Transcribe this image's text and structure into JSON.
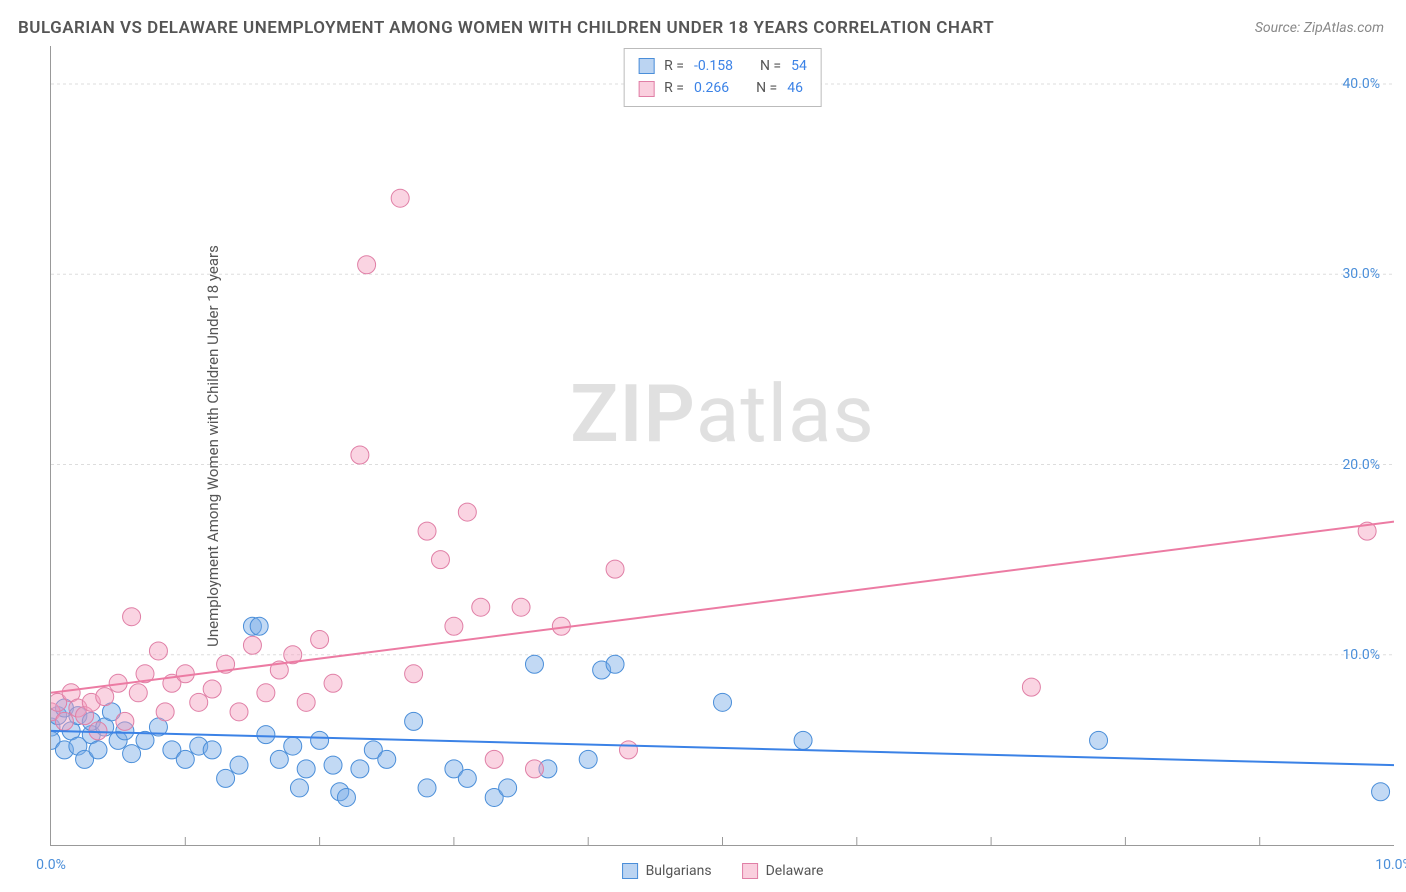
{
  "title": "BULGARIAN VS DELAWARE UNEMPLOYMENT AMONG WOMEN WITH CHILDREN UNDER 18 YEARS CORRELATION CHART",
  "source": "Source: ZipAtlas.com",
  "y_axis_label": "Unemployment Among Women with Children Under 18 years",
  "watermark_bold": "ZIP",
  "watermark_light": "atlas",
  "chart": {
    "type": "scatter",
    "xlim": [
      0,
      10
    ],
    "ylim": [
      0,
      42
    ],
    "x_ticks": [
      0,
      10
    ],
    "x_tick_labels": [
      "0.0%",
      "10.0%"
    ],
    "x_minor_ticks": [
      1,
      2,
      3,
      4,
      5,
      6,
      7,
      8,
      9
    ],
    "y_ticks": [
      10,
      20,
      30,
      40
    ],
    "y_tick_labels": [
      "10.0%",
      "20.0%",
      "30.0%",
      "40.0%"
    ],
    "background_color": "#ffffff",
    "grid_color": "#dddddd",
    "title_fontsize": 17,
    "label_fontsize": 15,
    "tick_fontsize": 14,
    "colors": {
      "blue_fill": "rgba(120,170,230,0.45)",
      "blue_stroke": "#4a8ed9",
      "blue_line": "#3b82e6",
      "pink_fill": "rgba(245,160,190,0.45)",
      "pink_stroke": "#e07fa6",
      "pink_line": "#ec7ba3",
      "axis": "#999999",
      "text": "#555555",
      "tick_text": "#4a8ed9"
    },
    "marker_radius": 9,
    "series": [
      {
        "name": "Bulgarians",
        "color_key": "blue",
        "r": -0.158,
        "n": 54,
        "trendline": {
          "y_at_xmin": 6.0,
          "y_at_xmax": 4.2
        },
        "points": [
          [
            0.0,
            6.2
          ],
          [
            0.0,
            5.5
          ],
          [
            0.05,
            6.8
          ],
          [
            0.1,
            5.0
          ],
          [
            0.1,
            7.2
          ],
          [
            0.15,
            6.0
          ],
          [
            0.2,
            5.2
          ],
          [
            0.2,
            6.8
          ],
          [
            0.25,
            4.5
          ],
          [
            0.3,
            5.8
          ],
          [
            0.3,
            6.5
          ],
          [
            0.35,
            5.0
          ],
          [
            0.4,
            6.2
          ],
          [
            0.45,
            7.0
          ],
          [
            0.5,
            5.5
          ],
          [
            0.55,
            6.0
          ],
          [
            0.6,
            4.8
          ],
          [
            0.7,
            5.5
          ],
          [
            0.8,
            6.2
          ],
          [
            0.9,
            5.0
          ],
          [
            1.0,
            4.5
          ],
          [
            1.1,
            5.2
          ],
          [
            1.2,
            5.0
          ],
          [
            1.3,
            3.5
          ],
          [
            1.4,
            4.2
          ],
          [
            1.5,
            11.5
          ],
          [
            1.55,
            11.5
          ],
          [
            1.6,
            5.8
          ],
          [
            1.7,
            4.5
          ],
          [
            1.8,
            5.2
          ],
          [
            1.85,
            3.0
          ],
          [
            1.9,
            4.0
          ],
          [
            2.0,
            5.5
          ],
          [
            2.1,
            4.2
          ],
          [
            2.15,
            2.8
          ],
          [
            2.2,
            2.5
          ],
          [
            2.3,
            4.0
          ],
          [
            2.4,
            5.0
          ],
          [
            2.5,
            4.5
          ],
          [
            2.7,
            6.5
          ],
          [
            2.8,
            3.0
          ],
          [
            3.0,
            4.0
          ],
          [
            3.1,
            3.5
          ],
          [
            3.3,
            2.5
          ],
          [
            3.4,
            3.0
          ],
          [
            3.6,
            9.5
          ],
          [
            3.7,
            4.0
          ],
          [
            4.0,
            4.5
          ],
          [
            4.1,
            9.2
          ],
          [
            4.2,
            9.5
          ],
          [
            5.0,
            7.5
          ],
          [
            5.6,
            5.5
          ],
          [
            7.8,
            5.5
          ],
          [
            9.9,
            2.8
          ]
        ]
      },
      {
        "name": "Delaware",
        "color_key": "pink",
        "r": 0.266,
        "n": 46,
        "trendline": {
          "y_at_xmin": 8.0,
          "y_at_xmax": 17.0
        },
        "points": [
          [
            0.0,
            7.0
          ],
          [
            0.05,
            7.5
          ],
          [
            0.1,
            6.5
          ],
          [
            0.15,
            8.0
          ],
          [
            0.2,
            7.2
          ],
          [
            0.25,
            6.8
          ],
          [
            0.3,
            7.5
          ],
          [
            0.35,
            6.0
          ],
          [
            0.4,
            7.8
          ],
          [
            0.5,
            8.5
          ],
          [
            0.55,
            6.5
          ],
          [
            0.6,
            12.0
          ],
          [
            0.65,
            8.0
          ],
          [
            0.7,
            9.0
          ],
          [
            0.8,
            10.2
          ],
          [
            0.85,
            7.0
          ],
          [
            0.9,
            8.5
          ],
          [
            1.0,
            9.0
          ],
          [
            1.1,
            7.5
          ],
          [
            1.2,
            8.2
          ],
          [
            1.3,
            9.5
          ],
          [
            1.4,
            7.0
          ],
          [
            1.5,
            10.5
          ],
          [
            1.6,
            8.0
          ],
          [
            1.7,
            9.2
          ],
          [
            1.8,
            10.0
          ],
          [
            1.9,
            7.5
          ],
          [
            2.0,
            10.8
          ],
          [
            2.1,
            8.5
          ],
          [
            2.3,
            20.5
          ],
          [
            2.35,
            30.5
          ],
          [
            2.6,
            34.0
          ],
          [
            2.7,
            9.0
          ],
          [
            2.8,
            16.5
          ],
          [
            2.9,
            15.0
          ],
          [
            3.0,
            11.5
          ],
          [
            3.1,
            17.5
          ],
          [
            3.2,
            12.5
          ],
          [
            3.3,
            4.5
          ],
          [
            3.5,
            12.5
          ],
          [
            3.6,
            4.0
          ],
          [
            3.8,
            11.5
          ],
          [
            4.2,
            14.5
          ],
          [
            4.3,
            5.0
          ],
          [
            7.3,
            8.3
          ],
          [
            9.8,
            16.5
          ]
        ]
      }
    ]
  },
  "top_legend": {
    "rows": [
      {
        "swatch": "blue",
        "r_label": "R =",
        "r_val": "-0.158",
        "n_label": "N =",
        "n_val": "54"
      },
      {
        "swatch": "pink",
        "r_label": "R =",
        "r_val": "0.266",
        "n_label": "N =",
        "n_val": "46"
      }
    ]
  },
  "bottom_legend": {
    "items": [
      {
        "swatch": "blue",
        "label": "Bulgarians"
      },
      {
        "swatch": "pink",
        "label": "Delaware"
      }
    ]
  }
}
